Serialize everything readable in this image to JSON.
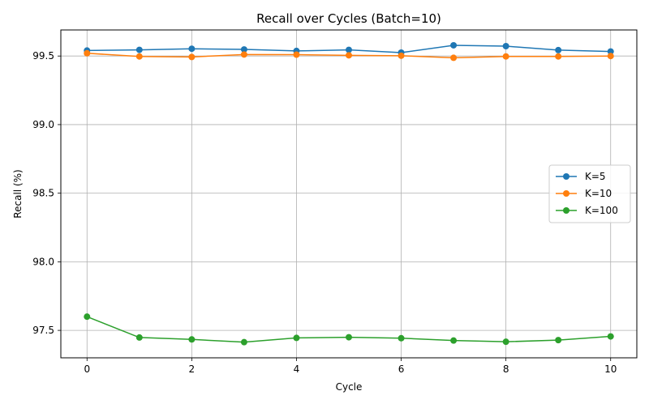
{
  "chart_data": {
    "type": "line",
    "title": "Recall over Cycles (Batch=10)",
    "xlabel": "Cycle",
    "ylabel": "Recall (%)",
    "x": [
      0,
      1,
      2,
      3,
      4,
      5,
      6,
      7,
      8,
      9,
      10
    ],
    "xlim": [
      -0.5,
      10.5
    ],
    "ylim": [
      97.3,
      99.69
    ],
    "xticks": [
      0,
      2,
      4,
      6,
      8,
      10
    ],
    "yticks": [
      97.5,
      98.0,
      98.5,
      99.0,
      99.5
    ],
    "ytick_labels": [
      "97.5",
      "98.0",
      "98.5",
      "99.0",
      "99.5"
    ],
    "grid": true,
    "legend_position": "center-right",
    "series": [
      {
        "name": "K=5",
        "color": "#1f77b4",
        "values": [
          99.54,
          99.545,
          99.553,
          99.548,
          99.537,
          99.545,
          99.525,
          99.578,
          99.572,
          99.543,
          99.533
        ]
      },
      {
        "name": "K=10",
        "color": "#ff7f0e",
        "values": [
          99.52,
          99.497,
          99.493,
          99.511,
          99.51,
          99.505,
          99.502,
          99.487,
          99.497,
          99.497,
          99.5
        ]
      },
      {
        "name": "K=100",
        "color": "#2ca02c",
        "values": [
          97.6,
          97.448,
          97.434,
          97.414,
          97.445,
          97.45,
          97.443,
          97.426,
          97.417,
          97.429,
          97.456
        ]
      }
    ]
  }
}
